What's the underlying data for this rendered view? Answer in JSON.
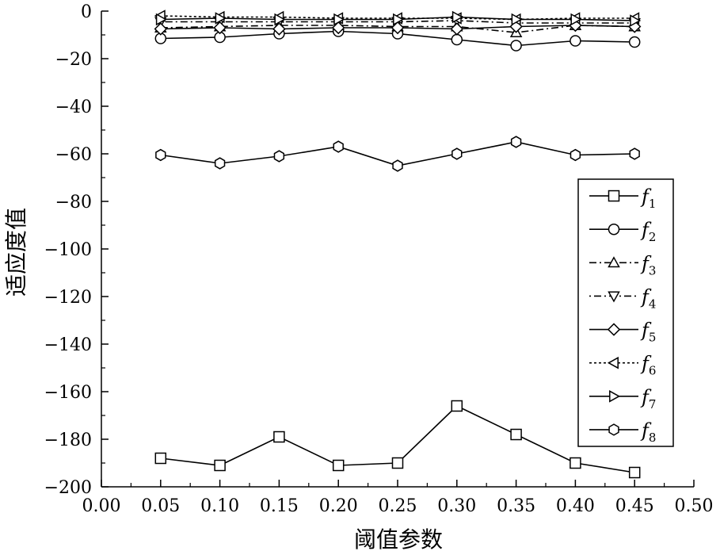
{
  "chart_data": {
    "type": "line",
    "title": "",
    "xlabel": "阈值参数",
    "ylabel": "适应度值",
    "xlim": [
      0.0,
      0.5
    ],
    "ylim": [
      -200,
      0
    ],
    "x_ticks": [
      "0.00",
      "0.05",
      "0.10",
      "0.15",
      "0.20",
      "0.25",
      "0.30",
      "0.35",
      "0.40",
      "0.45",
      "0.50"
    ],
    "y_ticks": [
      "0",
      "−20",
      "−40",
      "−60",
      "−80",
      "−100",
      "−120",
      "−140",
      "−160",
      "−180",
      "−200"
    ],
    "grid": false,
    "legend_position": "right",
    "x": [
      0.05,
      0.1,
      0.15,
      0.2,
      0.25,
      0.3,
      0.35,
      0.4,
      0.45
    ],
    "series": [
      {
        "name": "f",
        "sub": "1",
        "marker": "square",
        "dash": "solid",
        "values": [
          -188,
          -191,
          -179,
          -191,
          -190,
          -166,
          -178,
          -190,
          -194
        ]
      },
      {
        "name": "f",
        "sub": "2",
        "marker": "circle",
        "dash": "solid",
        "values": [
          -11.5,
          -11,
          -9.5,
          -8.5,
          -9.5,
          -12,
          -14.5,
          -12.5,
          -13
        ]
      },
      {
        "name": "f",
        "sub": "3",
        "marker": "triangle-up",
        "dash": "dashdot",
        "values": [
          -7,
          -6.5,
          -6,
          -6,
          -6.5,
          -6.5,
          -9,
          -6,
          -6.5
        ]
      },
      {
        "name": "f",
        "sub": "4",
        "marker": "triangle-down",
        "dash": "dotdash",
        "values": [
          -4.5,
          -4.5,
          -4.5,
          -4.5,
          -4.5,
          -4,
          -5,
          -5,
          -5
        ]
      },
      {
        "name": "f",
        "sub": "5",
        "marker": "diamond",
        "dash": "solid",
        "values": [
          -7.5,
          -7,
          -7.5,
          -7,
          -7,
          -7.5,
          -6.5,
          -6,
          -6.5
        ]
      },
      {
        "name": "f",
        "sub": "6",
        "marker": "triangle-left",
        "dash": "dotted",
        "values": [
          -2,
          -2.5,
          -2.5,
          -3,
          -3,
          -3,
          -3.5,
          -3,
          -3
        ]
      },
      {
        "name": "f",
        "sub": "7",
        "marker": "triangle-right",
        "dash": "solid",
        "values": [
          -3.5,
          -3,
          -3.5,
          -3.5,
          -3.5,
          -2.5,
          -3.5,
          -3.5,
          -4
        ]
      },
      {
        "name": "f",
        "sub": "8",
        "marker": "hexagon",
        "dash": "solid",
        "values": [
          -60.5,
          -64,
          -61,
          -57,
          -65,
          -60,
          -55,
          -60.5,
          -60
        ]
      }
    ]
  }
}
